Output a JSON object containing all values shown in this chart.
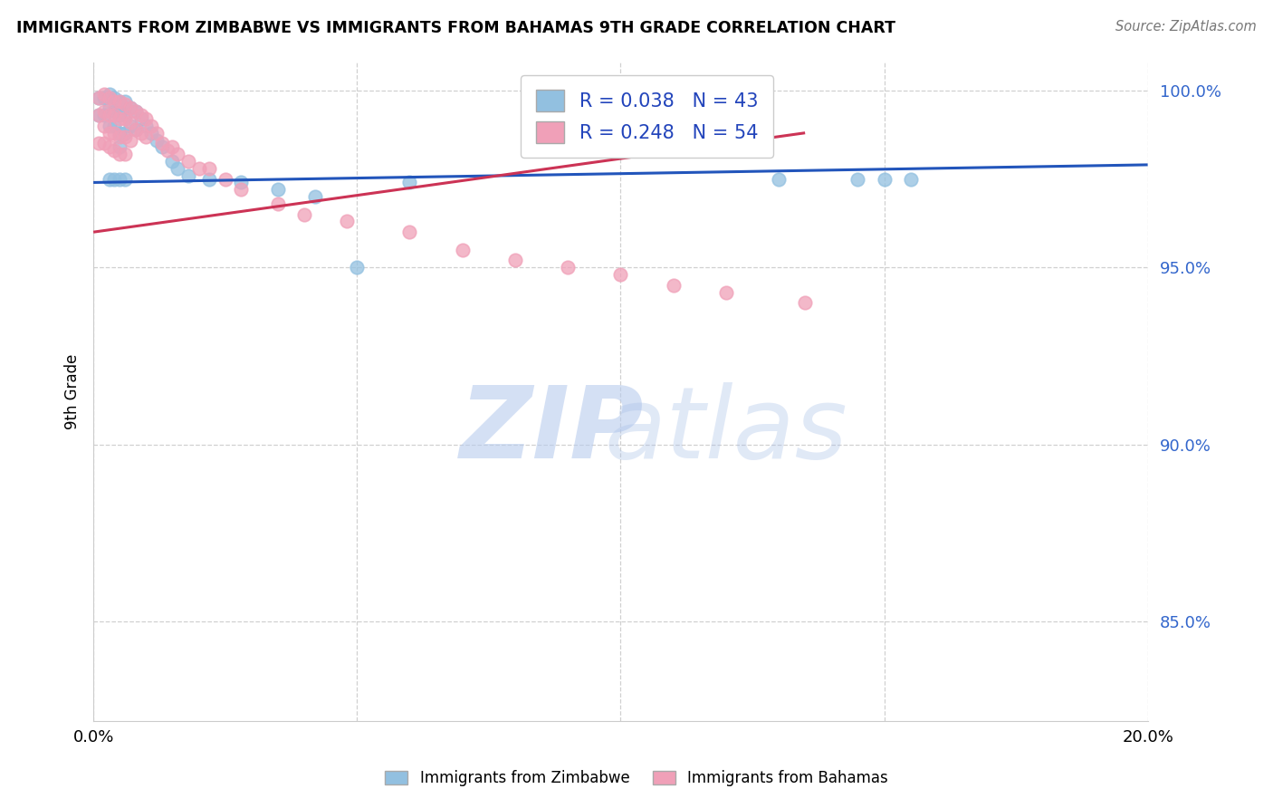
{
  "title": "IMMIGRANTS FROM ZIMBABWE VS IMMIGRANTS FROM BAHAMAS 9TH GRADE CORRELATION CHART",
  "source": "Source: ZipAtlas.com",
  "ylabel": "9th Grade",
  "yticks_labels": [
    "100.0%",
    "95.0%",
    "90.0%",
    "85.0%"
  ],
  "ytick_vals": [
    1.0,
    0.95,
    0.9,
    0.85
  ],
  "xlim": [
    0.0,
    0.2
  ],
  "ylim": [
    0.822,
    1.008
  ],
  "legend_r1": "R = 0.038",
  "legend_n1": "N = 43",
  "legend_r2": "R = 0.248",
  "legend_n2": "N = 54",
  "blue_color": "#92c0e0",
  "pink_color": "#f0a0b8",
  "trend_blue": "#2255bb",
  "trend_pink": "#cc3355",
  "blue_trend_x": [
    0.0,
    0.2
  ],
  "blue_trend_y": [
    0.974,
    0.979
  ],
  "pink_trend_x": [
    0.0,
    0.135
  ],
  "pink_trend_y": [
    0.96,
    0.988
  ],
  "zimbabwe_x": [
    0.001,
    0.001,
    0.002,
    0.002,
    0.003,
    0.003,
    0.003,
    0.004,
    0.004,
    0.004,
    0.005,
    0.005,
    0.005,
    0.005,
    0.006,
    0.006,
    0.006,
    0.007,
    0.007,
    0.008,
    0.008,
    0.009,
    0.01,
    0.011,
    0.012,
    0.013,
    0.015,
    0.016,
    0.018,
    0.022,
    0.028,
    0.035,
    0.042,
    0.05,
    0.06,
    0.13,
    0.145,
    0.155,
    0.003,
    0.004,
    0.005,
    0.006,
    0.15
  ],
  "zimbabwe_y": [
    0.998,
    0.993,
    0.998,
    0.993,
    0.999,
    0.995,
    0.99,
    0.998,
    0.994,
    0.99,
    0.997,
    0.993,
    0.988,
    0.984,
    0.997,
    0.993,
    0.988,
    0.995,
    0.99,
    0.994,
    0.989,
    0.992,
    0.99,
    0.988,
    0.986,
    0.984,
    0.98,
    0.978,
    0.976,
    0.975,
    0.974,
    0.972,
    0.97,
    0.95,
    0.974,
    0.975,
    0.975,
    0.975,
    0.975,
    0.975,
    0.975,
    0.975,
    0.975
  ],
  "bahamas_x": [
    0.001,
    0.001,
    0.001,
    0.002,
    0.002,
    0.002,
    0.002,
    0.003,
    0.003,
    0.003,
    0.003,
    0.004,
    0.004,
    0.004,
    0.004,
    0.005,
    0.005,
    0.005,
    0.005,
    0.006,
    0.006,
    0.006,
    0.006,
    0.007,
    0.007,
    0.007,
    0.008,
    0.008,
    0.009,
    0.009,
    0.01,
    0.01,
    0.011,
    0.012,
    0.013,
    0.014,
    0.015,
    0.016,
    0.018,
    0.02,
    0.022,
    0.025,
    0.028,
    0.035,
    0.04,
    0.048,
    0.06,
    0.07,
    0.08,
    0.09,
    0.1,
    0.11,
    0.12,
    0.135
  ],
  "bahamas_y": [
    0.998,
    0.993,
    0.985,
    0.999,
    0.994,
    0.99,
    0.985,
    0.998,
    0.993,
    0.988,
    0.984,
    0.997,
    0.993,
    0.988,
    0.983,
    0.997,
    0.992,
    0.987,
    0.982,
    0.996,
    0.992,
    0.987,
    0.982,
    0.995,
    0.991,
    0.986,
    0.994,
    0.989,
    0.993,
    0.988,
    0.992,
    0.987,
    0.99,
    0.988,
    0.985,
    0.983,
    0.984,
    0.982,
    0.98,
    0.978,
    0.978,
    0.975,
    0.972,
    0.968,
    0.965,
    0.963,
    0.96,
    0.955,
    0.952,
    0.95,
    0.948,
    0.945,
    0.943,
    0.94
  ],
  "watermark_zip": "ZIP",
  "watermark_atlas": "atlas"
}
